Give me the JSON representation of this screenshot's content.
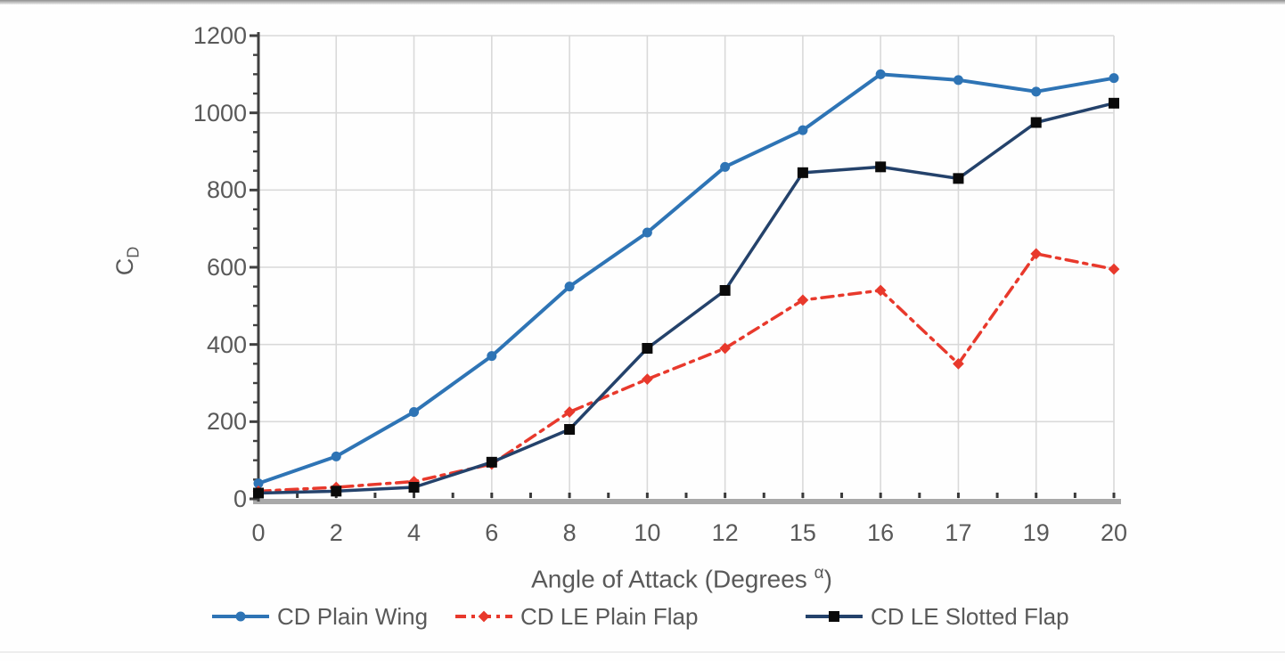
{
  "chart_data": {
    "type": "line",
    "title": "",
    "xlabel_prefix": "Angle of Attack (Degrees ",
    "xlabel_sup": "α",
    "xlabel_suffix": ")",
    "ylabel_main": "C",
    "ylabel_sub": "D",
    "categories": [
      "0",
      "2",
      "4",
      "6",
      "8",
      "10",
      "12",
      "15",
      "16",
      "17",
      "19",
      "20"
    ],
    "y_axis": {
      "min": 0,
      "max": 1200,
      "major_step": 200,
      "minor_step": 50,
      "tick_labels": [
        "0",
        "200",
        "400",
        "600",
        "800",
        "1000",
        "1200"
      ]
    },
    "grid": true,
    "legend_position": "bottom",
    "series": [
      {
        "name": "CD Plain Wing",
        "color": "#2E74B5",
        "line_style": "solid",
        "marker": "circle",
        "marker_color": "#2E74B5",
        "values": [
          40,
          110,
          225,
          370,
          550,
          690,
          860,
          955,
          1100,
          1085,
          1055,
          1090
        ]
      },
      {
        "name": "CD LE Plain Flap",
        "color": "#E8392C",
        "line_style": "dash-dot",
        "marker": "diamond",
        "marker_color": "#E8392C",
        "values": [
          20,
          30,
          45,
          90,
          225,
          310,
          390,
          515,
          540,
          350,
          635,
          595
        ]
      },
      {
        "name": "CD LE Slotted Flap",
        "color": "#24426B",
        "line_style": "solid",
        "marker": "square",
        "marker_color": "#0A0A0A",
        "values": [
          15,
          20,
          30,
          95,
          180,
          390,
          540,
          845,
          860,
          830,
          975,
          1025
        ]
      }
    ],
    "colors": {
      "gridline": "#D9D9D9",
      "axis_text": "#595959",
      "x_axis_band": "#A9A9A9",
      "y_axis_line": "#404040",
      "tick": "#3A3A3A"
    }
  }
}
